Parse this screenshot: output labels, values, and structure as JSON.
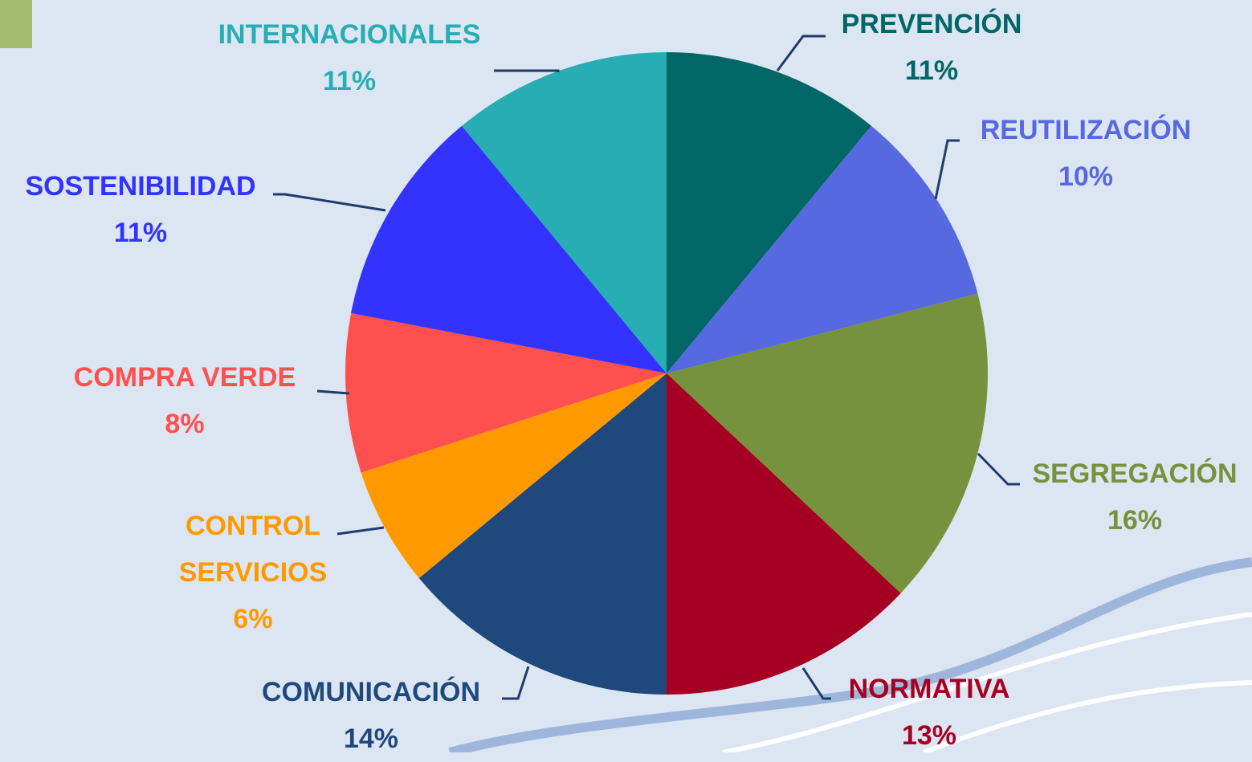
{
  "chart_data": {
    "type": "pie",
    "categories": [
      "PREVENCIÓN",
      "REUTILIZACIÓN",
      "SEGREGACIÓN",
      "NORMATIVA",
      "COMUNICACIÓN",
      "CONTROL SERVICIOS",
      "COMPRA VERDE",
      "SOSTENIBILIDAD",
      "INTERNACIONALES"
    ],
    "values": [
      11,
      10,
      16,
      13,
      14,
      6,
      8,
      11,
      11
    ],
    "value_labels": [
      "11%",
      "10%",
      "16%",
      "13%",
      "14%",
      "6%",
      "8%",
      "11%",
      "11%"
    ],
    "colors": [
      "#006666",
      "#5769e0",
      "#76923c",
      "#a50021",
      "#1f497d",
      "#ff9900",
      "#ff5050",
      "#3333ff",
      "#26aeb2"
    ]
  }
}
